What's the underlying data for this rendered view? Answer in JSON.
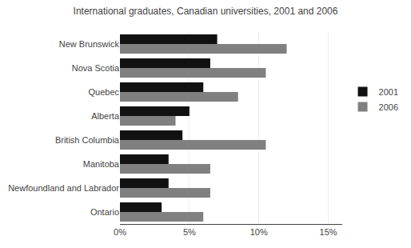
{
  "chart_data": {
    "type": "bar",
    "orientation": "horizontal",
    "title": "International graduates, Canadian universities, 2001 and 2006",
    "categories": [
      "New Brunswick",
      "Nova Scotia",
      "Quebec",
      "Alberta",
      "British Columbia",
      "Manitoba",
      "Newfoundland and Labrador",
      "Ontario"
    ],
    "series": [
      {
        "name": "2001",
        "color": "#111111",
        "values": [
          7.0,
          6.5,
          6.0,
          5.0,
          4.5,
          3.5,
          3.5,
          3.0
        ]
      },
      {
        "name": "2006",
        "color": "#808080",
        "values": [
          12.0,
          10.5,
          8.5,
          4.0,
          10.5,
          6.5,
          6.5,
          6.0
        ]
      }
    ],
    "xlim": [
      0,
      16
    ],
    "xticks": [
      {
        "value": 0,
        "label": "0%"
      },
      {
        "value": 5,
        "label": "5%"
      },
      {
        "value": 10,
        "label": "10%"
      },
      {
        "value": 15,
        "label": "15%"
      }
    ],
    "grid": true,
    "legend": "right"
  }
}
